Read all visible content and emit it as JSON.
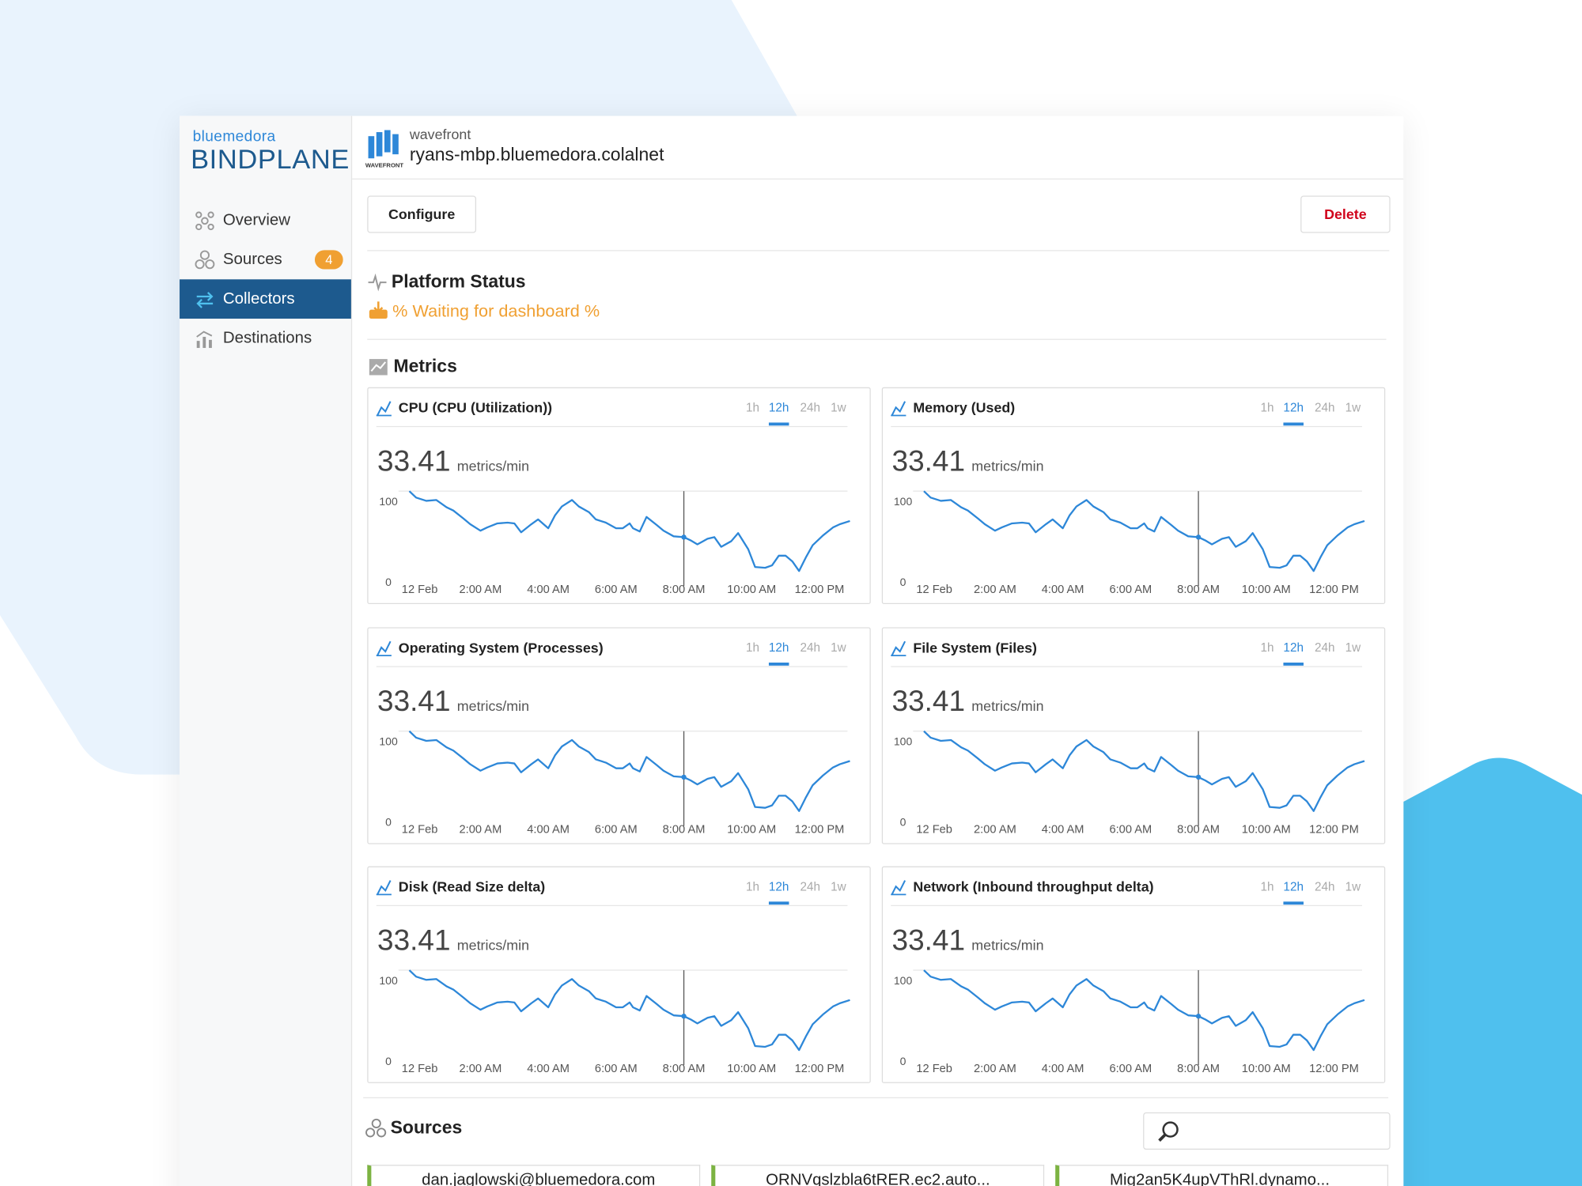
{
  "sidebar": {
    "brand_small": "bluemedora",
    "brand": "BINDPLANE",
    "nav": [
      {
        "label": "Overview"
      },
      {
        "label": "Sources",
        "badge": 4
      },
      {
        "label": "Collectors"
      },
      {
        "label": "Destinations"
      }
    ]
  },
  "header": {
    "kind": "wavefront",
    "logo_caption": "WAVEFRONT",
    "title": "ryans-mbp.bluemedora.colalnet"
  },
  "buttons": {
    "configure": "Configure",
    "delete": "Delete"
  },
  "status": {
    "title": "Platform Status",
    "message": "% Waiting for dashboard %"
  },
  "metrics_title": "Metrics",
  "charts": [
    {
      "title": "CPU (CPU (Utilization))",
      "value": 33.41,
      "unit": "metrics/min",
      "ranges": [
        "1h",
        "12h",
        "24h",
        "1w"
      ],
      "xlim": [
        -0.2,
        13
      ],
      "ylim": [
        0,
        100
      ],
      "yticks": [
        0,
        100
      ],
      "xticks": [
        {
          "value": 0,
          "label": "12 Feb"
        },
        {
          "value": 2,
          "label": "2:00 AM"
        },
        {
          "value": 4,
          "label": "4:00 AM"
        },
        {
          "value": 6,
          "label": "6:00 AM"
        },
        {
          "value": 8,
          "label": "8:00 AM"
        },
        {
          "value": 10,
          "label": "10:00 AM"
        },
        {
          "value": 12,
          "label": "12:00 PM"
        }
      ],
      "cursor": 8,
      "color": "#2d87d8",
      "x": [
        -0.1,
        0.1,
        0.4,
        0.7,
        1.0,
        1.2,
        1.5,
        1.7,
        2.0,
        2.2,
        2.5,
        2.8,
        3.0,
        3.2,
        3.5,
        3.7,
        4.0,
        4.2,
        4.4,
        4.7,
        4.9,
        5.2,
        5.4,
        5.7,
        6.0,
        6.2,
        6.4,
        6.5,
        6.7,
        6.9,
        7.2,
        7.4,
        7.7,
        8.0,
        8.2,
        8.4,
        8.7,
        8.9,
        9.1,
        9.4,
        9.6,
        9.9,
        10.1,
        10.4,
        10.6,
        10.8,
        11.0,
        11.2,
        11.4,
        11.6,
        11.8,
        12.1,
        12.4,
        12.6,
        12.9
      ],
      "values": [
        100,
        92,
        88,
        89,
        80,
        76,
        66,
        59,
        51,
        55,
        60,
        61,
        60,
        49,
        59,
        65,
        54,
        70,
        81,
        89,
        81,
        74,
        65,
        61,
        54,
        54,
        60,
        54,
        50,
        68,
        58,
        51,
        44,
        43,
        39,
        34,
        41,
        43,
        31,
        38,
        48,
        28,
        6,
        5,
        8,
        20,
        20,
        13,
        1,
        18,
        33,
        45,
        55,
        59,
        63
      ]
    },
    {
      "title": "Memory (Used)",
      "value": 33.41,
      "unit": "metrics/min",
      "ranges": [
        "1h",
        "12h",
        "24h",
        "1w"
      ],
      "xlim": [
        -0.2,
        13
      ],
      "ylim": [
        0,
        100
      ],
      "yticks": [
        0,
        100
      ],
      "xticks": [
        {
          "value": 0,
          "label": "12 Feb"
        },
        {
          "value": 2,
          "label": "2:00 AM"
        },
        {
          "value": 4,
          "label": "4:00 AM"
        },
        {
          "value": 6,
          "label": "6:00 AM"
        },
        {
          "value": 8,
          "label": "8:00 AM"
        },
        {
          "value": 10,
          "label": "10:00 AM"
        },
        {
          "value": 12,
          "label": "12:00 PM"
        }
      ],
      "cursor": 8,
      "color": "#2d87d8",
      "x": [
        -0.1,
        0.1,
        0.4,
        0.7,
        1.0,
        1.2,
        1.5,
        1.7,
        2.0,
        2.2,
        2.5,
        2.8,
        3.0,
        3.2,
        3.5,
        3.7,
        4.0,
        4.2,
        4.4,
        4.7,
        4.9,
        5.2,
        5.4,
        5.7,
        6.0,
        6.2,
        6.4,
        6.5,
        6.7,
        6.9,
        7.2,
        7.4,
        7.7,
        8.0,
        8.2,
        8.4,
        8.7,
        8.9,
        9.1,
        9.4,
        9.6,
        9.9,
        10.1,
        10.4,
        10.6,
        10.8,
        11.0,
        11.2,
        11.4,
        11.6,
        11.8,
        12.1,
        12.4,
        12.6,
        12.9
      ],
      "values": [
        100,
        92,
        88,
        89,
        80,
        76,
        66,
        59,
        51,
        55,
        60,
        61,
        60,
        49,
        59,
        65,
        54,
        70,
        81,
        89,
        81,
        74,
        65,
        61,
        54,
        54,
        60,
        54,
        50,
        68,
        58,
        51,
        44,
        43,
        39,
        34,
        41,
        43,
        31,
        38,
        48,
        28,
        6,
        5,
        8,
        20,
        20,
        13,
        1,
        18,
        33,
        45,
        55,
        59,
        63
      ]
    },
    {
      "title": "Operating System (Processes)",
      "value": 33.41,
      "unit": "metrics/min",
      "ranges": [
        "1h",
        "12h",
        "24h",
        "1w"
      ],
      "xlim": [
        -0.2,
        13
      ],
      "ylim": [
        0,
        100
      ],
      "yticks": [
        0,
        100
      ],
      "xticks": [
        {
          "value": 0,
          "label": "12 Feb"
        },
        {
          "value": 2,
          "label": "2:00 AM"
        },
        {
          "value": 4,
          "label": "4:00 AM"
        },
        {
          "value": 6,
          "label": "6:00 AM"
        },
        {
          "value": 8,
          "label": "8:00 AM"
        },
        {
          "value": 10,
          "label": "10:00 AM"
        },
        {
          "value": 12,
          "label": "12:00 PM"
        }
      ],
      "cursor": 8,
      "color": "#2d87d8",
      "x": [
        -0.1,
        0.1,
        0.4,
        0.7,
        1.0,
        1.2,
        1.5,
        1.7,
        2.0,
        2.2,
        2.5,
        2.8,
        3.0,
        3.2,
        3.5,
        3.7,
        4.0,
        4.2,
        4.4,
        4.7,
        4.9,
        5.2,
        5.4,
        5.7,
        6.0,
        6.2,
        6.4,
        6.5,
        6.7,
        6.9,
        7.2,
        7.4,
        7.7,
        8.0,
        8.2,
        8.4,
        8.7,
        8.9,
        9.1,
        9.4,
        9.6,
        9.9,
        10.1,
        10.4,
        10.6,
        10.8,
        11.0,
        11.2,
        11.4,
        11.6,
        11.8,
        12.1,
        12.4,
        12.6,
        12.9
      ],
      "values": [
        100,
        92,
        88,
        89,
        80,
        76,
        66,
        59,
        51,
        55,
        60,
        61,
        60,
        49,
        59,
        65,
        54,
        70,
        81,
        89,
        81,
        74,
        65,
        61,
        54,
        54,
        60,
        54,
        50,
        68,
        58,
        51,
        44,
        43,
        39,
        34,
        41,
        43,
        31,
        38,
        48,
        28,
        6,
        5,
        8,
        20,
        20,
        13,
        1,
        18,
        33,
        45,
        55,
        59,
        63
      ]
    },
    {
      "title": "File System (Files)",
      "value": 33.41,
      "unit": "metrics/min",
      "ranges": [
        "1h",
        "12h",
        "24h",
        "1w"
      ],
      "xlim": [
        -0.2,
        13
      ],
      "ylim": [
        0,
        100
      ],
      "yticks": [
        0,
        100
      ],
      "xticks": [
        {
          "value": 0,
          "label": "12 Feb"
        },
        {
          "value": 2,
          "label": "2:00 AM"
        },
        {
          "value": 4,
          "label": "4:00 AM"
        },
        {
          "value": 6,
          "label": "6:00 AM"
        },
        {
          "value": 8,
          "label": "8:00 AM"
        },
        {
          "value": 10,
          "label": "10:00 AM"
        },
        {
          "value": 12,
          "label": "12:00 PM"
        }
      ],
      "cursor": 8,
      "color": "#2d87d8",
      "x": [
        -0.1,
        0.1,
        0.4,
        0.7,
        1.0,
        1.2,
        1.5,
        1.7,
        2.0,
        2.2,
        2.5,
        2.8,
        3.0,
        3.2,
        3.5,
        3.7,
        4.0,
        4.2,
        4.4,
        4.7,
        4.9,
        5.2,
        5.4,
        5.7,
        6.0,
        6.2,
        6.4,
        6.5,
        6.7,
        6.9,
        7.2,
        7.4,
        7.7,
        8.0,
        8.2,
        8.4,
        8.7,
        8.9,
        9.1,
        9.4,
        9.6,
        9.9,
        10.1,
        10.4,
        10.6,
        10.8,
        11.0,
        11.2,
        11.4,
        11.6,
        11.8,
        12.1,
        12.4,
        12.6,
        12.9
      ],
      "values": [
        100,
        92,
        88,
        89,
        80,
        76,
        66,
        59,
        51,
        55,
        60,
        61,
        60,
        49,
        59,
        65,
        54,
        70,
        81,
        89,
        81,
        74,
        65,
        61,
        54,
        54,
        60,
        54,
        50,
        68,
        58,
        51,
        44,
        43,
        39,
        34,
        41,
        43,
        31,
        38,
        48,
        28,
        6,
        5,
        8,
        20,
        20,
        13,
        1,
        18,
        33,
        45,
        55,
        59,
        63
      ]
    },
    {
      "title": "Disk (Read Size delta)",
      "value": 33.41,
      "unit": "metrics/min",
      "ranges": [
        "1h",
        "12h",
        "24h",
        "1w"
      ],
      "xlim": [
        -0.2,
        13
      ],
      "ylim": [
        0,
        100
      ],
      "yticks": [
        0,
        100
      ],
      "xticks": [
        {
          "value": 0,
          "label": "12 Feb"
        },
        {
          "value": 2,
          "label": "2:00 AM"
        },
        {
          "value": 4,
          "label": "4:00 AM"
        },
        {
          "value": 6,
          "label": "6:00 AM"
        },
        {
          "value": 8,
          "label": "8:00 AM"
        },
        {
          "value": 10,
          "label": "10:00 AM"
        },
        {
          "value": 12,
          "label": "12:00 PM"
        }
      ],
      "cursor": 8,
      "color": "#2d87d8",
      "x": [
        -0.1,
        0.1,
        0.4,
        0.7,
        1.0,
        1.2,
        1.5,
        1.7,
        2.0,
        2.2,
        2.5,
        2.8,
        3.0,
        3.2,
        3.5,
        3.7,
        4.0,
        4.2,
        4.4,
        4.7,
        4.9,
        5.2,
        5.4,
        5.7,
        6.0,
        6.2,
        6.4,
        6.5,
        6.7,
        6.9,
        7.2,
        7.4,
        7.7,
        8.0,
        8.2,
        8.4,
        8.7,
        8.9,
        9.1,
        9.4,
        9.6,
        9.9,
        10.1,
        10.4,
        10.6,
        10.8,
        11.0,
        11.2,
        11.4,
        11.6,
        11.8,
        12.1,
        12.4,
        12.6,
        12.9
      ],
      "values": [
        100,
        92,
        88,
        89,
        80,
        76,
        66,
        59,
        51,
        55,
        60,
        61,
        60,
        49,
        59,
        65,
        54,
        70,
        81,
        89,
        81,
        74,
        65,
        61,
        54,
        54,
        60,
        54,
        50,
        68,
        58,
        51,
        44,
        43,
        39,
        34,
        41,
        43,
        31,
        38,
        48,
        28,
        6,
        5,
        8,
        20,
        20,
        13,
        1,
        18,
        33,
        45,
        55,
        59,
        63
      ]
    },
    {
      "title": "Network (Inbound throughput delta)",
      "value": 33.41,
      "unit": "metrics/min",
      "ranges": [
        "1h",
        "12h",
        "24h",
        "1w"
      ],
      "xlim": [
        -0.2,
        13
      ],
      "ylim": [
        0,
        100
      ],
      "yticks": [
        0,
        100
      ],
      "xticks": [
        {
          "value": 0,
          "label": "12 Feb"
        },
        {
          "value": 2,
          "label": "2:00 AM"
        },
        {
          "value": 4,
          "label": "4:00 AM"
        },
        {
          "value": 6,
          "label": "6:00 AM"
        },
        {
          "value": 8,
          "label": "8:00 AM"
        },
        {
          "value": 10,
          "label": "10:00 AM"
        },
        {
          "value": 12,
          "label": "12:00 PM"
        }
      ],
      "cursor": 8,
      "color": "#2d87d8",
      "x": [
        -0.1,
        0.1,
        0.4,
        0.7,
        1.0,
        1.2,
        1.5,
        1.7,
        2.0,
        2.2,
        2.5,
        2.8,
        3.0,
        3.2,
        3.5,
        3.7,
        4.0,
        4.2,
        4.4,
        4.7,
        4.9,
        5.2,
        5.4,
        5.7,
        6.0,
        6.2,
        6.4,
        6.5,
        6.7,
        6.9,
        7.2,
        7.4,
        7.7,
        8.0,
        8.2,
        8.4,
        8.7,
        8.9,
        9.1,
        9.4,
        9.6,
        9.9,
        10.1,
        10.4,
        10.6,
        10.8,
        11.0,
        11.2,
        11.4,
        11.6,
        11.8,
        12.1,
        12.4,
        12.6,
        12.9
      ],
      "values": [
        100,
        92,
        88,
        89,
        80,
        76,
        66,
        59,
        51,
        55,
        60,
        61,
        60,
        49,
        59,
        65,
        54,
        70,
        81,
        89,
        81,
        74,
        65,
        61,
        54,
        54,
        60,
        54,
        50,
        68,
        58,
        51,
        44,
        43,
        39,
        34,
        41,
        43,
        31,
        38,
        48,
        28,
        6,
        5,
        8,
        20,
        20,
        13,
        1,
        18,
        33,
        45,
        55,
        59,
        63
      ]
    }
  ],
  "sources": {
    "title": "Sources",
    "items": [
      "dan.jaglowski@bluemedora.com",
      "ORNVqslzbla6tRER.ec2.auto...",
      "Mig2an5K4upVThRl.dynamo..."
    ]
  }
}
